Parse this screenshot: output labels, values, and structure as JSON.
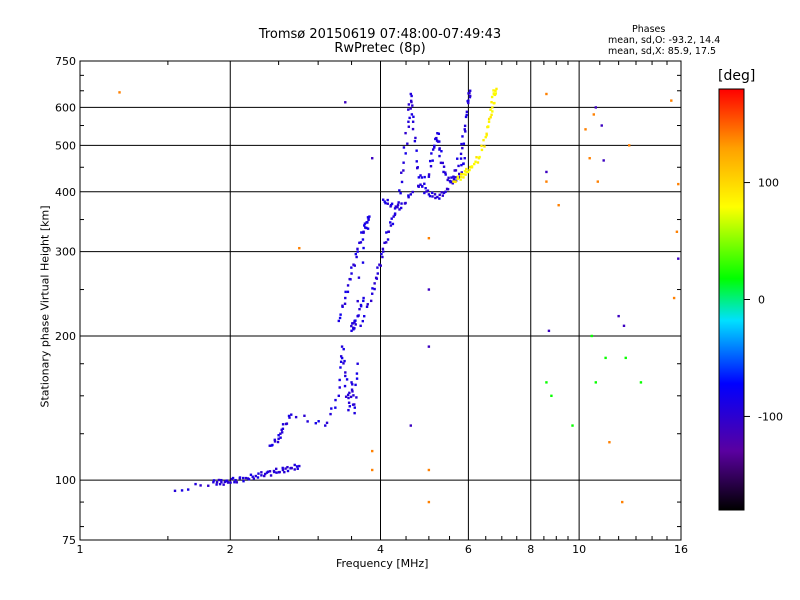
{
  "chart_data": {
    "type": "scatter",
    "title": "Tromsø 20150619 07:48:00-07:49:43",
    "subtitle": "RwPretec (8p)",
    "xlabel": "Frequency [MHz]",
    "ylabel": "Stationary phase Virtual Height [km]",
    "x_scale": "log",
    "y_scale": "log",
    "xlim": [
      1,
      16
    ],
    "ylim": [
      75,
      750
    ],
    "x_ticks": [
      1,
      2,
      4,
      6,
      8,
      10,
      16
    ],
    "y_ticks": [
      75,
      100,
      200,
      300,
      400,
      500,
      600,
      750
    ],
    "x_gridlines": [
      2,
      4,
      6,
      8,
      10
    ],
    "y_gridlines": [
      100,
      200,
      300,
      400,
      500,
      600
    ],
    "grid": true,
    "colorbar": {
      "label": "[deg]",
      "range": [
        -180,
        180
      ],
      "ticks": [
        100,
        0,
        -100
      ],
      "colors": [
        "#000000",
        "#5a00a0",
        "#0000ff",
        "#00e0ff",
        "#00ff00",
        "#ffff00",
        "#ffa000",
        "#ff0000"
      ]
    },
    "phases": {
      "title": "Phases",
      "line_o": "mean, sd,O:  -93.2, 14.4",
      "line_x": "mean, sd,X:   85.9, 17.5"
    },
    "traces": [
      {
        "phase": -95,
        "points": [
          [
            1.55,
            95
          ],
          [
            1.85,
            99
          ],
          [
            1.92,
            99
          ],
          [
            1.98,
            99
          ],
          [
            2.05,
            100
          ],
          [
            2.15,
            101
          ],
          [
            2.25,
            102
          ],
          [
            2.35,
            103
          ],
          [
            2.45,
            104
          ],
          [
            2.55,
            105
          ],
          [
            2.65,
            106
          ],
          [
            2.75,
            107
          ]
        ]
      },
      {
        "phase": -92,
        "points": [
          [
            2.4,
            118
          ],
          [
            2.5,
            122
          ],
          [
            2.55,
            128
          ],
          [
            2.65,
            137
          ],
          [
            3.1,
            130
          ],
          [
            3.3,
            150
          ],
          [
            3.35,
            190
          ],
          [
            3.4,
            165
          ],
          [
            3.45,
            140
          ],
          [
            3.5,
            160
          ],
          [
            3.55,
            138
          ],
          [
            3.6,
            175
          ]
        ]
      },
      {
        "phase": -90,
        "points": [
          [
            3.3,
            215
          ],
          [
            3.4,
            240
          ],
          [
            3.5,
            270
          ],
          [
            3.6,
            300
          ],
          [
            3.7,
            330
          ],
          [
            3.75,
            345
          ],
          [
            3.8,
            355
          ],
          [
            3.55,
            215
          ],
          [
            3.5,
            205
          ],
          [
            3.6,
            220
          ],
          [
            3.7,
            240
          ]
        ]
      },
      {
        "phase": -94,
        "points": [
          [
            3.65,
            210
          ],
          [
            3.85,
            245
          ],
          [
            3.95,
            270
          ],
          [
            4.05,
            300
          ],
          [
            4.15,
            330
          ],
          [
            4.25,
            355
          ],
          [
            4.35,
            380
          ],
          [
            4.45,
            460
          ],
          [
            4.55,
            560
          ],
          [
            4.6,
            640
          ],
          [
            4.65,
            560
          ],
          [
            4.75,
            450
          ],
          [
            4.85,
            410
          ],
          [
            5.0,
            395
          ],
          [
            5.2,
            390
          ],
          [
            5.4,
            400
          ],
          [
            5.6,
            430
          ],
          [
            5.8,
            480
          ],
          [
            5.9,
            540
          ],
          [
            6.0,
            620
          ],
          [
            6.05,
            650
          ]
        ]
      },
      {
        "phase": -92,
        "points": [
          [
            4.05,
            385
          ],
          [
            4.2,
            375
          ],
          [
            4.4,
            370
          ],
          [
            4.6,
            395
          ],
          [
            5.0,
            430
          ],
          [
            5.1,
            490
          ],
          [
            5.2,
            530
          ],
          [
            5.25,
            490
          ],
          [
            5.35,
            440
          ],
          [
            5.55,
            420
          ],
          [
            5.75,
            430
          ],
          [
            5.9,
            470
          ]
        ]
      },
      {
        "phase": 85,
        "points": [
          [
            5.6,
            420
          ],
          [
            5.8,
            430
          ],
          [
            5.95,
            440
          ],
          [
            6.1,
            450
          ],
          [
            6.3,
            470
          ],
          [
            6.5,
            520
          ],
          [
            6.6,
            560
          ],
          [
            6.7,
            600
          ],
          [
            6.75,
            640
          ],
          [
            6.8,
            650
          ]
        ]
      }
    ],
    "scatter_noise": [
      {
        "phase": 140,
        "points": [
          [
            1.2,
            645
          ],
          [
            2.75,
            305
          ],
          [
            3.85,
            105
          ],
          [
            3.85,
            115
          ],
          [
            5.0,
            90
          ],
          [
            5.0,
            105
          ],
          [
            5.0,
            320
          ],
          [
            8.6,
            640
          ],
          [
            8.6,
            420
          ],
          [
            9.1,
            375
          ],
          [
            10.3,
            540
          ],
          [
            10.5,
            470
          ],
          [
            10.7,
            580
          ],
          [
            10.9,
            420
          ],
          [
            11.5,
            120
          ],
          [
            12.2,
            90
          ],
          [
            12.6,
            500
          ],
          [
            15.3,
            620
          ],
          [
            15.5,
            240
          ],
          [
            15.7,
            330
          ],
          [
            15.8,
            415
          ]
        ]
      },
      {
        "phase": -110,
        "points": [
          [
            3.4,
            615
          ],
          [
            3.85,
            470
          ],
          [
            4.6,
            130
          ],
          [
            5.0,
            190
          ],
          [
            5.0,
            250
          ],
          [
            8.6,
            440
          ],
          [
            8.7,
            205
          ],
          [
            10.8,
            600
          ],
          [
            11.1,
            550
          ],
          [
            11.2,
            465
          ],
          [
            12.0,
            220
          ],
          [
            12.3,
            210
          ],
          [
            15.8,
            290
          ]
        ]
      },
      {
        "phase": 20,
        "points": [
          [
            8.6,
            160
          ],
          [
            8.8,
            150
          ],
          [
            9.7,
            130
          ],
          [
            10.6,
            200
          ],
          [
            10.8,
            160
          ],
          [
            11.3,
            180
          ],
          [
            12.4,
            180
          ],
          [
            13.3,
            160
          ]
        ]
      }
    ]
  }
}
